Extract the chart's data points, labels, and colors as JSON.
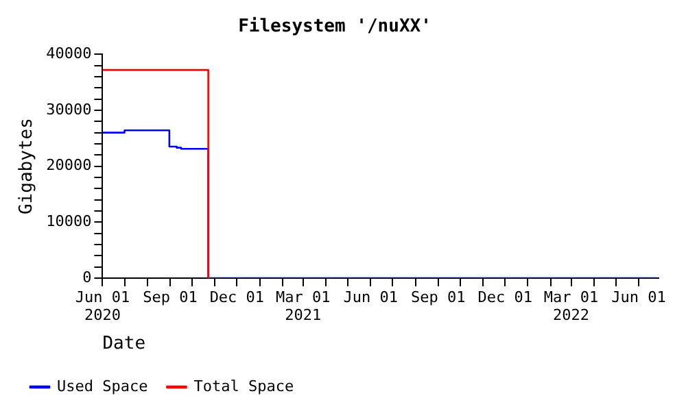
{
  "chart_data": {
    "type": "step",
    "title": "Filesystem '/nuXX'",
    "xlabel": "Date",
    "ylabel": "Gigabytes",
    "series": [
      {
        "name": "Used Space",
        "color": "#0000ff",
        "x": [
          "2020-06-01",
          "2020-07-01",
          "2020-08-31",
          "2020-09-10",
          "2020-09-16",
          "2020-10-23",
          "2022-06-26"
        ],
        "values": [
          26000,
          26400,
          23500,
          23300,
          23100,
          0,
          0
        ]
      },
      {
        "name": "Total Space",
        "color": "#ff0000",
        "x": [
          "2020-06-01",
          "2020-10-23",
          "2020-10-23"
        ],
        "values": [
          37200,
          37200,
          0
        ]
      }
    ],
    "xlim": [
      "2020-06-01",
      "2022-06-28"
    ],
    "xticks": [
      {
        "value": "2020-06-01",
        "label": "Jun 01\n2020"
      },
      {
        "value": "2020-07-01",
        "label": null
      },
      {
        "value": "2020-08-01",
        "label": null
      },
      {
        "value": "2020-09-01",
        "label": "Sep 01"
      },
      {
        "value": "2020-10-01",
        "label": null
      },
      {
        "value": "2020-11-01",
        "label": null
      },
      {
        "value": "2020-12-01",
        "label": "Dec 01"
      },
      {
        "value": "2021-01-01",
        "label": null
      },
      {
        "value": "2021-02-01",
        "label": null
      },
      {
        "value": "2021-03-01",
        "label": "Mar 01\n2021"
      },
      {
        "value": "2021-04-01",
        "label": null
      },
      {
        "value": "2021-05-01",
        "label": null
      },
      {
        "value": "2021-06-01",
        "label": "Jun 01"
      },
      {
        "value": "2021-07-01",
        "label": null
      },
      {
        "value": "2021-08-01",
        "label": null
      },
      {
        "value": "2021-09-01",
        "label": "Sep 01"
      },
      {
        "value": "2021-10-01",
        "label": null
      },
      {
        "value": "2021-11-01",
        "label": null
      },
      {
        "value": "2021-12-01",
        "label": "Dec 01"
      },
      {
        "value": "2022-01-01",
        "label": null
      },
      {
        "value": "2022-02-01",
        "label": null
      },
      {
        "value": "2022-03-01",
        "label": "Mar 01\n2022"
      },
      {
        "value": "2022-04-01",
        "label": null
      },
      {
        "value": "2022-05-01",
        "label": null
      },
      {
        "value": "2022-06-01",
        "label": "Jun 01"
      }
    ],
    "ylim": [
      0,
      40000
    ],
    "yticks": [
      0,
      {
        "value": 2000,
        "label": null
      },
      {
        "value": 4000,
        "label": null
      },
      {
        "value": 6000,
        "label": null
      },
      {
        "value": 8000,
        "label": null
      },
      10000,
      {
        "value": 12000,
        "label": null
      },
      {
        "value": 14000,
        "label": null
      },
      {
        "value": 16000,
        "label": null
      },
      {
        "value": 18000,
        "label": null
      },
      20000,
      {
        "value": 22000,
        "label": null
      },
      {
        "value": 24000,
        "label": null
      },
      {
        "value": 26000,
        "label": null
      },
      {
        "value": 28000,
        "label": null
      },
      30000,
      {
        "value": 32000,
        "label": null
      },
      {
        "value": 34000,
        "label": null
      },
      {
        "value": 36000,
        "label": null
      },
      {
        "value": 38000,
        "label": null
      },
      40000
    ],
    "grid": false,
    "legend": "bottom left",
    "line_style": "solid",
    "marker": "none"
  }
}
